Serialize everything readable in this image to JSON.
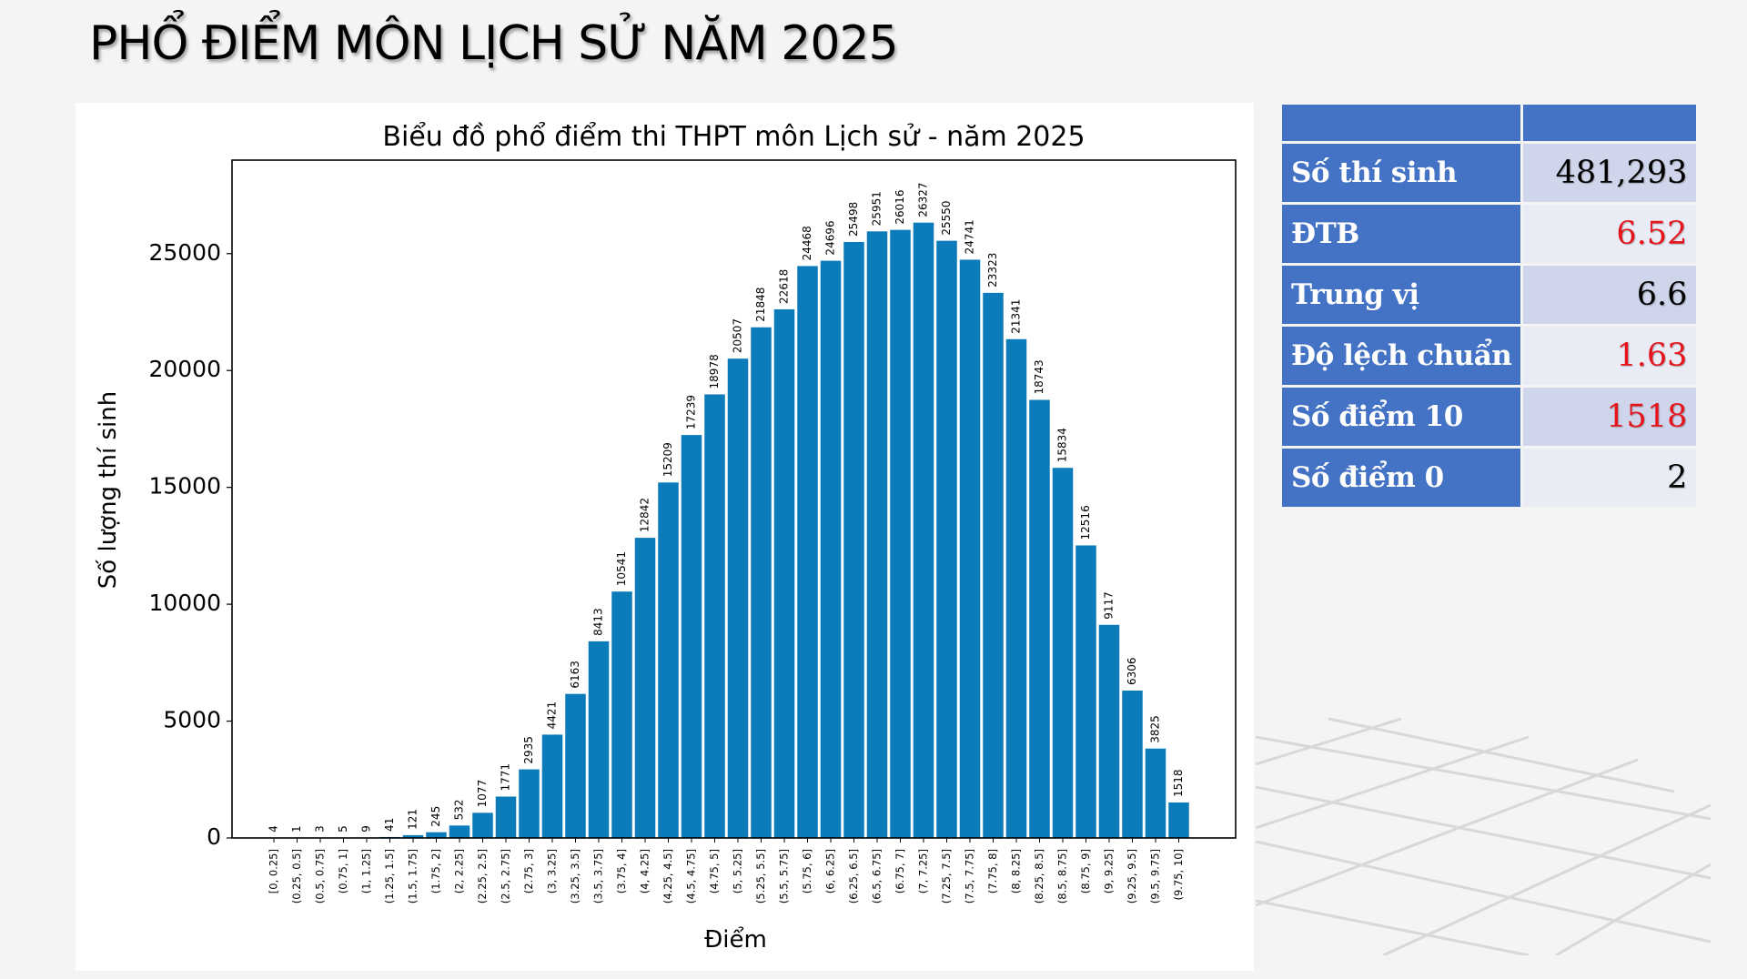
{
  "page": {
    "title": "PHỔ ĐIỂM MÔN LỊCH SỬ NĂM 2025"
  },
  "stats": {
    "rows": [
      {
        "label": "Số thí sinh",
        "value": "481,293",
        "highlight": false
      },
      {
        "label": "ĐTB",
        "value": "6.52",
        "highlight": true
      },
      {
        "label": "Trung vị",
        "value": "6.6",
        "highlight": false
      },
      {
        "label": "Độ lệch chuẩn",
        "value": "1.63",
        "highlight": true
      },
      {
        "label": "Số điểm 10",
        "value": "1518",
        "highlight": true
      },
      {
        "label": "Số điểm 0",
        "value": "2",
        "highlight": false
      }
    ]
  },
  "colors": {
    "bar": "#0b7bba",
    "header": "#4472c4",
    "highlight_text": "#e8141b"
  },
  "chart_data": {
    "type": "bar",
    "title": "Biểu đồ phổ điểm thi THPT môn Lịch sử - năm 2025",
    "xlabel": "Điểm",
    "ylabel": "Số lượng thí sinh",
    "ylim": [
      0,
      29000
    ],
    "yticks": [
      0,
      5000,
      10000,
      15000,
      20000,
      25000
    ],
    "grid": false,
    "categories": [
      "[0, 0.25]",
      "(0.25, 0.5]",
      "(0.5, 0.75]",
      "(0.75, 1]",
      "(1, 1.25]",
      "(1.25, 1.5]",
      "(1.5, 1.75]",
      "(1.75, 2]",
      "(2, 2.25]",
      "(2.25, 2.5]",
      "(2.5, 2.75]",
      "(2.75, 3]",
      "(3, 3.25]",
      "(3.25, 3.5]",
      "(3.5, 3.75]",
      "(3.75, 4]",
      "(4, 4.25]",
      "(4.25, 4.5]",
      "(4.5, 4.75]",
      "(4.75, 5]",
      "(5, 5.25]",
      "(5.25, 5.5]",
      "(5.5, 5.75]",
      "(5.75, 6]",
      "(6, 6.25]",
      "(6.25, 6.5]",
      "(6.5, 6.75]",
      "(6.75, 7]",
      "(7, 7.25]",
      "(7.25, 7.5]",
      "(7.5, 7.75]",
      "(7.75, 8]",
      "(8, 8.25]",
      "(8.25, 8.5]",
      "(8.5, 8.75]",
      "(8.75, 9]",
      "(9, 9.25]",
      "(9.25, 9.5]",
      "(9.5, 9.75]",
      "(9.75, 10]"
    ],
    "values": [
      4,
      1,
      3,
      5,
      9,
      41,
      121,
      245,
      532,
      1077,
      1771,
      2935,
      4421,
      6163,
      8413,
      10541,
      12842,
      15209,
      17239,
      18978,
      20507,
      21848,
      22618,
      24468,
      24696,
      25498,
      25951,
      26016,
      26327,
      25550,
      24741,
      23323,
      21341,
      18743,
      15834,
      12516,
      9117,
      6306,
      3825,
      1518
    ]
  }
}
